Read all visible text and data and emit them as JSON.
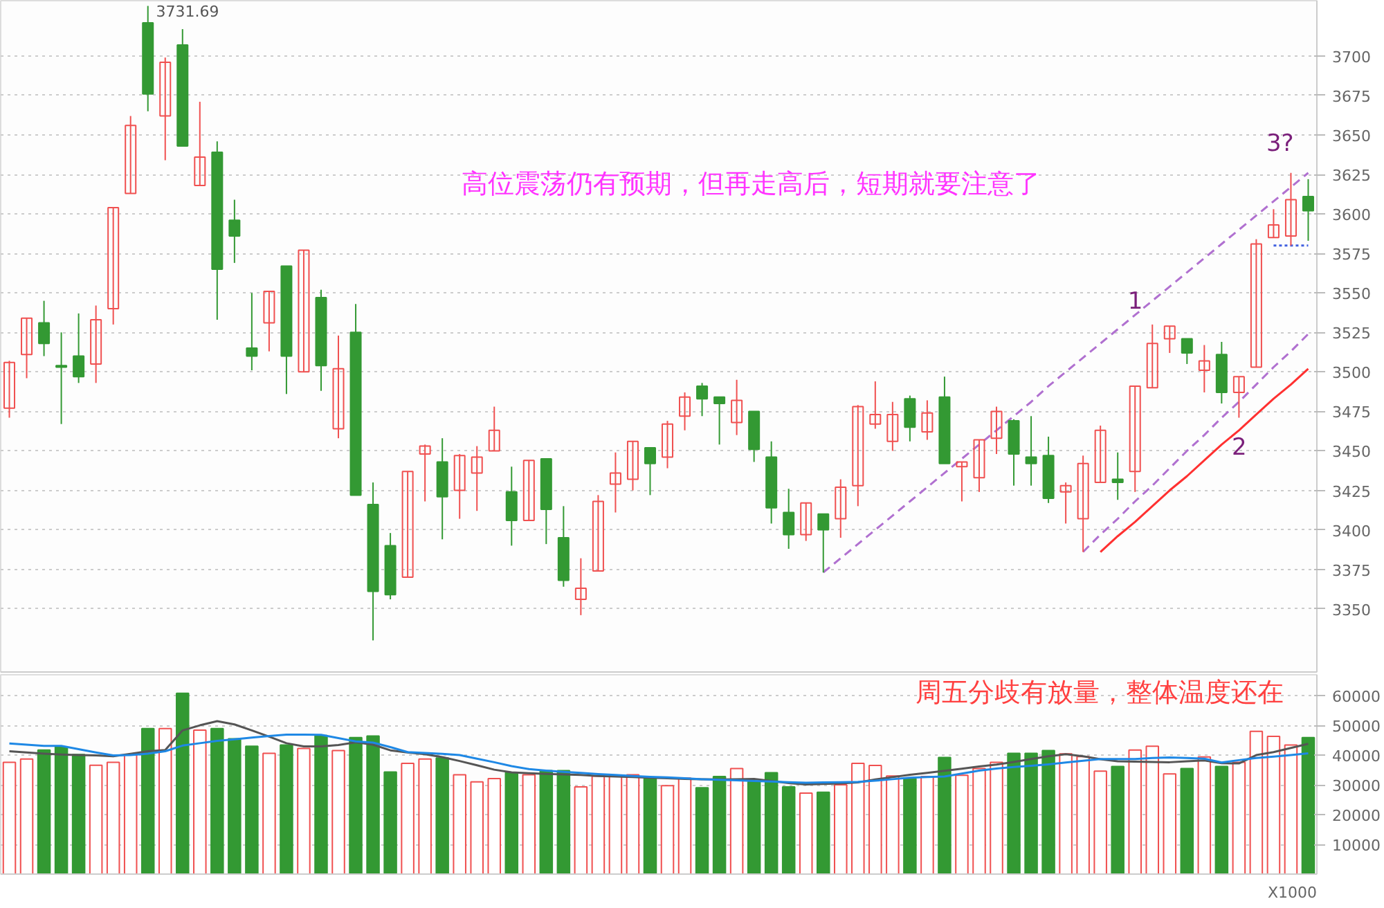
{
  "chart_data": [
    {
      "type": "candlestick",
      "categories": [
        null,
        null,
        null,
        null,
        null,
        null,
        null,
        null,
        null,
        null,
        null,
        null,
        null,
        null,
        null,
        null,
        null,
        null,
        null,
        null,
        null,
        null,
        null,
        null,
        null,
        null,
        null,
        null,
        null,
        null,
        null,
        null,
        null,
        null,
        null,
        null,
        null,
        null,
        null,
        null,
        null,
        null,
        null,
        null,
        null,
        null,
        null,
        null,
        null,
        null,
        null,
        null,
        null,
        null,
        null,
        null,
        null,
        null,
        null,
        null,
        null,
        null,
        null,
        null,
        null,
        null,
        null,
        null,
        null,
        null,
        null,
        null,
        null,
        null,
        null,
        null
      ],
      "ohlc": [
        [
          3477,
          3507,
          3471,
          3506
        ],
        [
          3511,
          3534,
          3496,
          3534
        ],
        [
          3531,
          3545,
          3510,
          3518
        ],
        [
          3504,
          3525,
          3467,
          3503
        ],
        [
          3510,
          3537,
          3493,
          3497
        ],
        [
          3505,
          3542,
          3493,
          3533
        ],
        [
          3540,
          3604,
          3530,
          3604
        ],
        [
          3613,
          3662,
          3613,
          3656
        ],
        [
          3721,
          3731.69,
          3665,
          3676
        ],
        [
          3662,
          3699,
          3634,
          3696
        ],
        [
          3707,
          3717,
          3643,
          3643
        ],
        [
          3618,
          3671,
          3618,
          3636
        ],
        [
          3639,
          3646,
          3533,
          3565
        ],
        [
          3596,
          3609,
          3569,
          3586
        ],
        [
          3515,
          3550,
          3501,
          3510
        ],
        [
          3531,
          3551,
          3513,
          3551
        ],
        [
          3567,
          3567,
          3486,
          3510
        ],
        [
          3500,
          3577,
          3500,
          3577
        ],
        [
          3547,
          3552,
          3488,
          3504
        ],
        [
          3464,
          3523,
          3458,
          3502
        ],
        [
          3525,
          3543,
          3422,
          3422
        ],
        [
          3416,
          3430,
          3330,
          3361
        ],
        [
          3390,
          3398,
          3356,
          3359
        ],
        [
          3370,
          3437,
          3370,
          3437
        ],
        [
          3448,
          3454,
          3418,
          3453
        ],
        [
          3443,
          3458,
          3394,
          3421
        ],
        [
          3425,
          3448,
          3407,
          3447
        ],
        [
          3436,
          3453,
          3412,
          3446
        ],
        [
          3450,
          3478,
          3450,
          3463
        ],
        [
          3424,
          3440,
          3390,
          3406
        ],
        [
          3406,
          3444,
          3406,
          3444
        ],
        [
          3445,
          3445,
          3391,
          3413
        ],
        [
          3395,
          3415,
          3364,
          3368
        ],
        [
          3356,
          3382,
          3346,
          3363
        ],
        [
          3374,
          3422,
          3374,
          3418
        ],
        [
          3429,
          3449,
          3411,
          3436
        ],
        [
          3432,
          3456,
          3425,
          3456
        ],
        [
          3452,
          3452,
          3422,
          3442
        ],
        [
          3446,
          3469,
          3439,
          3467
        ],
        [
          3472,
          3487,
          3463,
          3484
        ],
        [
          3491,
          3493,
          3472,
          3483
        ],
        [
          3484,
          3484,
          3454,
          3480
        ],
        [
          3468,
          3495,
          3460,
          3482
        ],
        [
          3475,
          3475,
          3443,
          3451
        ],
        [
          3446,
          3456,
          3404,
          3414
        ],
        [
          3411,
          3426,
          3388,
          3397
        ],
        [
          3397,
          3417,
          3393,
          3417
        ],
        [
          3410,
          3410,
          3373,
          3400
        ],
        [
          3407,
          3432,
          3395,
          3427
        ],
        [
          3428,
          3479,
          3415,
          3478
        ],
        [
          3467,
          3494,
          3464,
          3473
        ],
        [
          3456,
          3481,
          3450,
          3473
        ],
        [
          3483,
          3485,
          3456,
          3465
        ],
        [
          3462,
          3482,
          3457,
          3474
        ],
        [
          3484,
          3497,
          3442,
          3442
        ],
        [
          3440,
          3443,
          3418,
          3443
        ],
        [
          3433,
          3457,
          3424,
          3457
        ],
        [
          3458,
          3478,
          3448,
          3475
        ],
        [
          3469,
          3470,
          3428,
          3448
        ],
        [
          3446,
          3472,
          3428,
          3442
        ],
        [
          3447,
          3459,
          3417,
          3420
        ],
        [
          3424,
          3430,
          3404,
          3428
        ],
        [
          3407,
          3447,
          3386,
          3442
        ],
        [
          3430,
          3466,
          3430,
          3463
        ],
        [
          3432,
          3449,
          3419,
          3430
        ],
        [
          3437,
          3491,
          3424,
          3491
        ],
        [
          3490,
          3530,
          3490,
          3518
        ],
        [
          3521,
          3529,
          3512,
          3529
        ],
        [
          3521,
          3521,
          3505,
          3512
        ],
        [
          3501,
          3517,
          3487,
          3507
        ],
        [
          3511,
          3519,
          3480,
          3487
        ],
        [
          3487,
          3497,
          3471,
          3497
        ],
        [
          3503,
          3584,
          3503,
          3581
        ],
        [
          3585,
          3603,
          3585,
          3593
        ],
        [
          3586,
          3626,
          3580,
          3609
        ],
        [
          3611,
          3622,
          3583,
          3602
        ]
      ],
      "colors": [
        "#f05050",
        "#f05050",
        "#339933",
        "#339933",
        "#339933",
        "#f05050",
        "#f05050",
        "#f05050",
        "#339933",
        "#f05050",
        "#339933",
        "#f05050",
        "#339933",
        "#339933",
        "#339933",
        "#f05050",
        "#339933",
        "#f05050",
        "#339933",
        "#f05050",
        "#339933",
        "#339933",
        "#339933",
        "#f05050",
        "#f05050",
        "#339933",
        "#f05050",
        "#f05050",
        "#f05050",
        "#339933",
        "#f05050",
        "#339933",
        "#339933",
        "#f05050",
        "#f05050",
        "#f05050",
        "#f05050",
        "#339933",
        "#f05050",
        "#f05050",
        "#339933",
        "#339933",
        "#f05050",
        "#339933",
        "#339933",
        "#339933",
        "#f05050",
        "#339933",
        "#f05050",
        "#f05050",
        "#f05050",
        "#f05050",
        "#339933",
        "#f05050",
        "#339933",
        "#f05050",
        "#f05050",
        "#f05050",
        "#339933",
        "#339933",
        "#339933",
        "#f05050",
        "#f05050",
        "#f05050",
        "#339933",
        "#f05050",
        "#f05050",
        "#f05050",
        "#339933",
        "#f05050",
        "#339933",
        "#f05050",
        "#f05050",
        "#f05050",
        "#f05050",
        "#339933"
      ],
      "series": [
        {
          "type": "line",
          "color": "#b070d0",
          "line_style": "dashed",
          "values": [
            null,
            null,
            null,
            null,
            null,
            null,
            null,
            null,
            null,
            null,
            null,
            null,
            null,
            null,
            null,
            null,
            null,
            null,
            null,
            null,
            null,
            null,
            null,
            null,
            null,
            null,
            null,
            null,
            null,
            null,
            null,
            null,
            null,
            null,
            null,
            null,
            null,
            null,
            null,
            null,
            null,
            null,
            null,
            null,
            null,
            null,
            null,
            3373,
            3382,
            3391,
            3400,
            3409,
            3418,
            3427,
            3436,
            3445,
            3454,
            3463,
            3472,
            3481,
            3491,
            3500,
            3509,
            3518,
            3527,
            3536,
            3545,
            3554,
            3563,
            3572,
            3581,
            3590,
            3599,
            3608,
            3617,
            3626
          ]
        },
        {
          "type": "line",
          "color": "#b070d0",
          "line_style": "dashed",
          "values": [
            null,
            null,
            null,
            null,
            null,
            null,
            null,
            null,
            null,
            null,
            null,
            null,
            null,
            null,
            null,
            null,
            null,
            null,
            null,
            null,
            null,
            null,
            null,
            null,
            null,
            null,
            null,
            null,
            null,
            null,
            null,
            null,
            null,
            null,
            null,
            null,
            null,
            null,
            null,
            null,
            null,
            null,
            null,
            null,
            null,
            null,
            null,
            null,
            null,
            null,
            null,
            null,
            null,
            null,
            null,
            null,
            null,
            null,
            null,
            null,
            null,
            null,
            3386,
            3397,
            3407,
            3418,
            3428,
            3439,
            3450,
            3460,
            3471,
            3481,
            3492,
            3503,
            3513,
            3524
          ]
        },
        {
          "type": "line",
          "color": "#4060e0",
          "line_style": "dotted",
          "values": [
            null,
            null,
            null,
            null,
            null,
            null,
            null,
            null,
            null,
            null,
            null,
            null,
            null,
            null,
            null,
            null,
            null,
            null,
            null,
            null,
            null,
            null,
            null,
            null,
            null,
            null,
            null,
            null,
            null,
            null,
            null,
            null,
            null,
            null,
            null,
            null,
            null,
            null,
            null,
            null,
            null,
            null,
            null,
            null,
            null,
            null,
            null,
            null,
            null,
            null,
            null,
            null,
            null,
            null,
            null,
            null,
            null,
            null,
            null,
            null,
            null,
            null,
            null,
            null,
            null,
            null,
            null,
            null,
            null,
            null,
            null,
            null,
            null,
            3580,
            3580,
            3580
          ]
        },
        {
          "type": "line",
          "color": "#ff3030",
          "line_style": "solid",
          "values": [
            null,
            null,
            null,
            null,
            null,
            null,
            null,
            null,
            null,
            null,
            null,
            null,
            null,
            null,
            null,
            null,
            null,
            null,
            null,
            null,
            null,
            null,
            null,
            null,
            null,
            null,
            null,
            null,
            null,
            null,
            null,
            null,
            null,
            null,
            null,
            null,
            null,
            null,
            null,
            null,
            null,
            null,
            null,
            null,
            null,
            null,
            null,
            null,
            null,
            null,
            null,
            null,
            null,
            null,
            null,
            null,
            null,
            null,
            null,
            null,
            null,
            null,
            null,
            3386,
            3396,
            3405,
            3415,
            3425,
            3434,
            3444,
            3454,
            3463,
            3473,
            3483,
            3492,
            3502
          ]
        }
      ],
      "ylim": [
        3310,
        3735
      ],
      "yticks": [
        3350,
        3375,
        3400,
        3425,
        3450,
        3475,
        3500,
        3525,
        3550,
        3575,
        3600,
        3625,
        3650,
        3675,
        3700
      ],
      "grid": "y",
      "tick_labels": "y",
      "annotations": [
        "高位震荡仍有预期，但再走高后，短期就要注意了",
        "1",
        "2",
        "3?",
        "3731.69"
      ]
    },
    {
      "type": "bar",
      "categories": [
        null,
        null,
        null,
        null,
        null,
        null,
        null,
        null,
        null,
        null,
        null,
        null,
        null,
        null,
        null,
        null,
        null,
        null,
        null,
        null,
        null,
        null,
        null,
        null,
        null,
        null,
        null,
        null,
        null,
        null,
        null,
        null,
        null,
        null,
        null,
        null,
        null,
        null,
        null,
        null,
        null,
        null,
        null,
        null,
        null,
        null,
        null,
        null,
        null,
        null,
        null,
        null,
        null,
        null,
        null,
        null,
        null,
        null,
        null,
        null,
        null,
        null,
        null,
        null,
        null,
        null,
        null,
        null,
        null,
        null,
        null,
        null,
        null,
        null,
        null,
        null
      ],
      "ylim": [
        0,
        67000
      ],
      "yticks": [
        10000,
        20000,
        30000,
        40000,
        50000,
        60000
      ],
      "grid": "y",
      "tick_labels": "y",
      "series": [
        {
          "type": "bar",
          "values": [
            37600,
            38700,
            41700,
            42800,
            40200,
            36600,
            37600,
            40000,
            48900,
            48900,
            60800,
            48400,
            48900,
            45500,
            43000,
            40600,
            43400,
            42200,
            46600,
            41500,
            45900,
            46400,
            34300,
            37200,
            38700,
            39000,
            33400,
            31000,
            32100,
            34100,
            33400,
            34800,
            34800,
            29300,
            32900,
            33200,
            33400,
            32100,
            29700,
            32300,
            29000,
            32800,
            35500,
            31000,
            34100,
            29300,
            27200,
            27500,
            30000,
            37200,
            36500,
            33000,
            32100,
            32800,
            39200,
            33200,
            35500,
            37600,
            40600,
            40600,
            41500,
            40400,
            39500,
            34600,
            36200,
            41700,
            43000,
            33700,
            35500,
            39400,
            36200,
            37600,
            48000,
            46300,
            43400,
            45900
          ],
          "colors": [
            "#f05050",
            "#f05050",
            "#339933",
            "#339933",
            "#339933",
            "#f05050",
            "#f05050",
            "#f05050",
            "#339933",
            "#f05050",
            "#339933",
            "#f05050",
            "#339933",
            "#339933",
            "#339933",
            "#f05050",
            "#339933",
            "#f05050",
            "#339933",
            "#f05050",
            "#339933",
            "#339933",
            "#339933",
            "#f05050",
            "#f05050",
            "#339933",
            "#f05050",
            "#f05050",
            "#f05050",
            "#339933",
            "#f05050",
            "#339933",
            "#339933",
            "#f05050",
            "#f05050",
            "#f05050",
            "#f05050",
            "#339933",
            "#f05050",
            "#f05050",
            "#339933",
            "#339933",
            "#f05050",
            "#339933",
            "#339933",
            "#339933",
            "#f05050",
            "#339933",
            "#f05050",
            "#f05050",
            "#f05050",
            "#f05050",
            "#339933",
            "#f05050",
            "#339933",
            "#f05050",
            "#f05050",
            "#f05050",
            "#339933",
            "#339933",
            "#339933",
            "#f05050",
            "#f05050",
            "#f05050",
            "#339933",
            "#f05050",
            "#f05050",
            "#f05050",
            "#339933",
            "#f05050",
            "#339933",
            "#f05050",
            "#f05050",
            "#f05050",
            "#f05050",
            "#339933"
          ]
        },
        {
          "type": "line",
          "color": "#555555",
          "values": [
            41300,
            40900,
            40500,
            40200,
            40000,
            39900,
            39600,
            40400,
            41300,
            41700,
            48300,
            50000,
            51400,
            50300,
            48300,
            46200,
            44000,
            42900,
            42900,
            43400,
            44300,
            43500,
            41600,
            40900,
            40300,
            39300,
            38000,
            36600,
            35100,
            34200,
            33900,
            33700,
            33500,
            33300,
            33000,
            32800,
            32600,
            32400,
            32200,
            32000,
            31900,
            31800,
            31900,
            32000,
            31300,
            30600,
            30100,
            30300,
            30500,
            30800,
            31800,
            32600,
            33400,
            34000,
            34700,
            35400,
            36200,
            36800,
            37700,
            38700,
            39600,
            40300,
            39600,
            38600,
            37900,
            37800,
            37700,
            37600,
            37900,
            38200,
            37300,
            37200,
            40000,
            41000,
            42400,
            43800
          ]
        },
        {
          "type": "line",
          "color": "#1e88e5",
          "values": [
            43900,
            43500,
            43100,
            43100,
            42000,
            40900,
            39900,
            40000,
            40500,
            41300,
            43200,
            44000,
            44800,
            45300,
            45900,
            46400,
            46900,
            46900,
            46800,
            45700,
            44600,
            44200,
            42700,
            41000,
            40700,
            40400,
            40000,
            38800,
            37600,
            36300,
            35300,
            34800,
            34400,
            34000,
            33600,
            33300,
            33000,
            32700,
            32500,
            32200,
            31900,
            31700,
            31500,
            31300,
            31100,
            30900,
            30700,
            30800,
            30900,
            31000,
            31400,
            31900,
            32400,
            32600,
            32800,
            33800,
            34800,
            35500,
            36000,
            36400,
            36900,
            37500,
            38100,
            38700,
            38700,
            38700,
            39000,
            39200,
            39000,
            38800,
            37500,
            38300,
            39000,
            39500,
            40000,
            40600
          ]
        }
      ],
      "annotations": [
        "周五分歧有放量，整体温度还在",
        "X1000"
      ]
    }
  ]
}
